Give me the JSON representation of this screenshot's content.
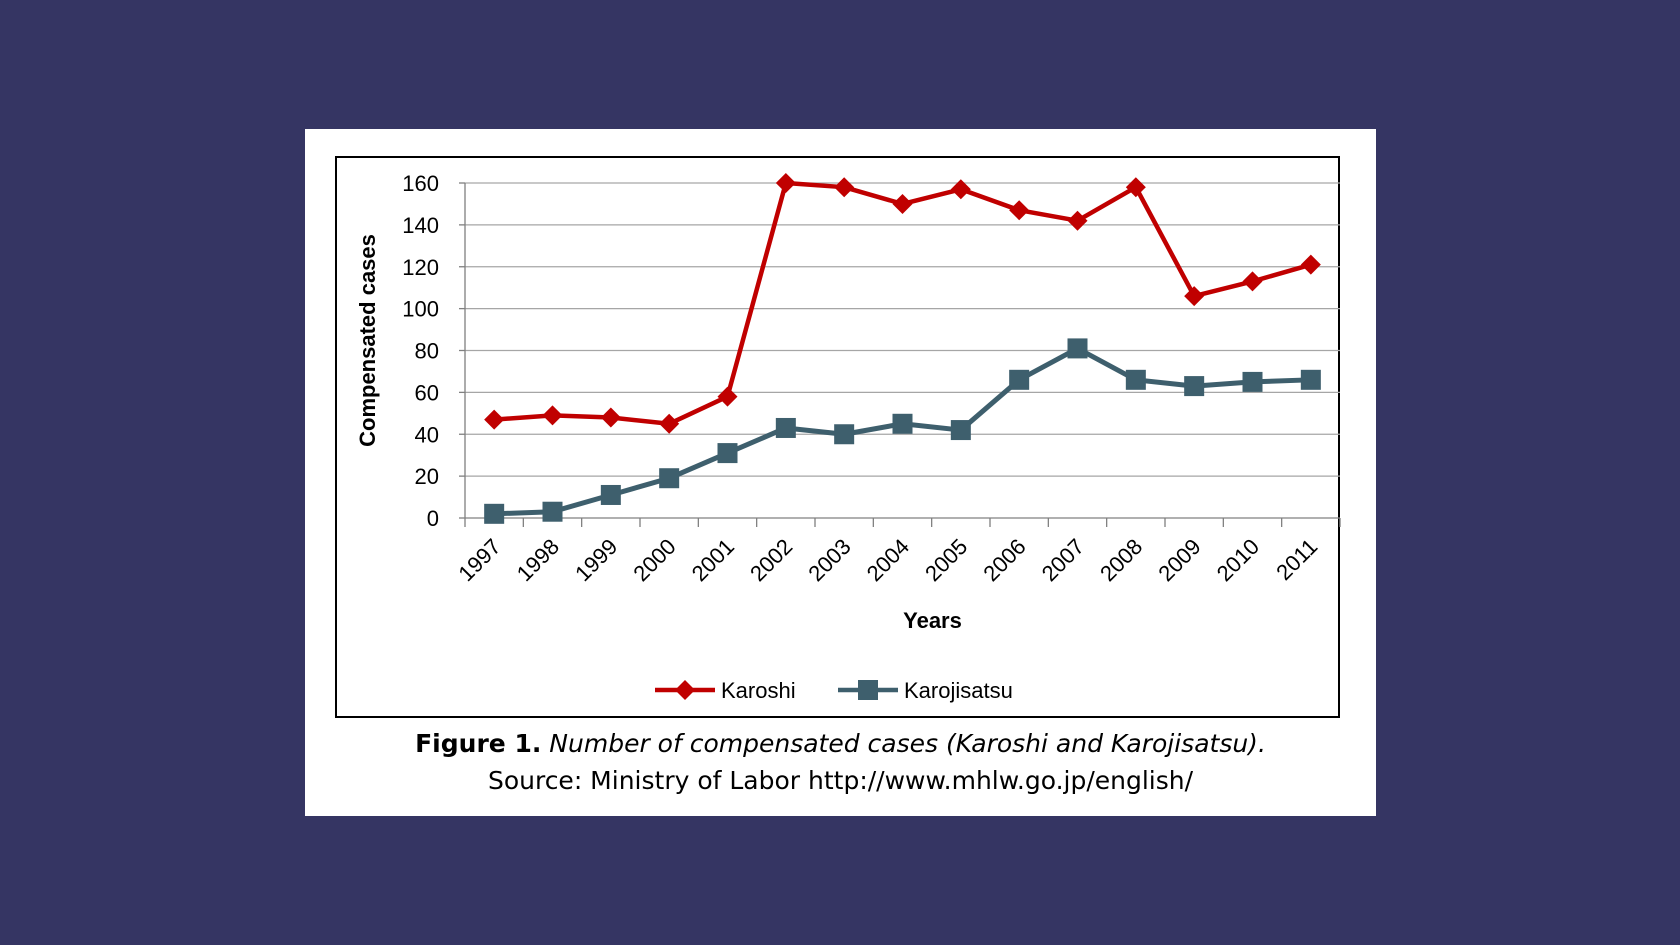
{
  "chart_data": {
    "type": "line",
    "categories": [
      "1997",
      "1998",
      "1999",
      "2000",
      "2001",
      "2002",
      "2003",
      "2004",
      "2005",
      "2006",
      "2007",
      "2008",
      "2009",
      "2010",
      "2011"
    ],
    "series": [
      {
        "name": "Karoshi",
        "color": "#c00000",
        "marker": "diamond",
        "values": [
          47,
          49,
          48,
          45,
          58,
          160,
          158,
          150,
          157,
          147,
          142,
          158,
          106,
          113,
          121
        ]
      },
      {
        "name": "Karojisatsu",
        "color": "#3e5f6d",
        "marker": "square",
        "values": [
          2,
          3,
          11,
          19,
          31,
          43,
          40,
          45,
          42,
          66,
          81,
          66,
          63,
          65,
          66
        ]
      }
    ],
    "xlabel": "Years",
    "ylabel": "Compensated cases",
    "ylim": [
      0,
      160
    ],
    "yticks": [
      "0",
      "20",
      "40",
      "60",
      "80",
      "100",
      "120",
      "140",
      "160"
    ],
    "grid": true,
    "legend": "bottom-center"
  },
  "caption": {
    "label": "Figure 1.",
    "title": "Number of compensated cases (Karoshi and Karojisatsu).",
    "source": "Source: Ministry of Labor http://www.mhlw.go.jp/english/"
  }
}
